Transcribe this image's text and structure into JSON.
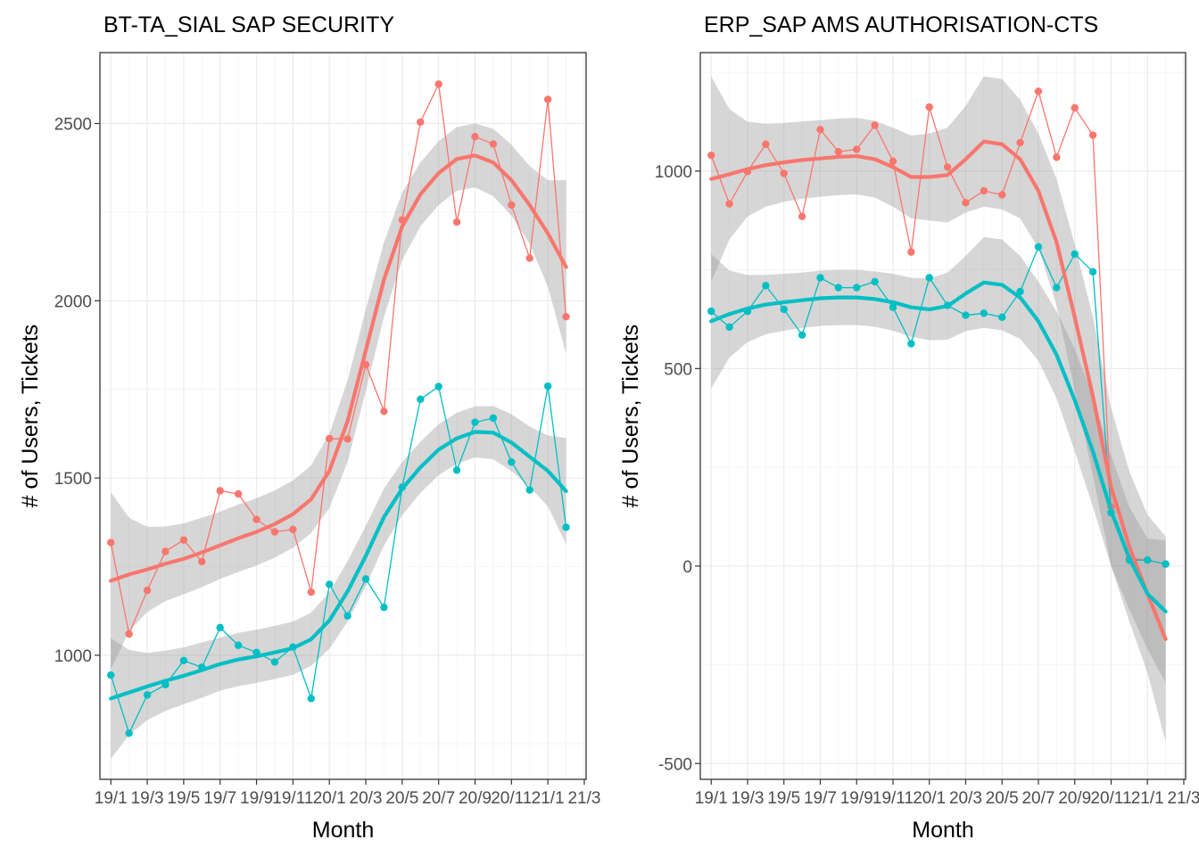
{
  "colors": {
    "users": "#F8766D",
    "tickets": "#00BFC4",
    "ribbon": "#999999",
    "grid_major": "#ebebeb",
    "grid_minor": "#f5f5f5",
    "panel_border": "#333333",
    "tick_text": "#4d4d4d"
  },
  "chart_data": [
    {
      "type": "line",
      "title": "BT-TA_SIAL SAP SECURITY",
      "xlabel": "Month",
      "ylabel": "# of Users, Tickets",
      "xlim": [
        -0.6,
        26.1
      ],
      "ylim": [
        650,
        2700
      ],
      "yticks": [
        1000,
        1500,
        2000,
        2500
      ],
      "yminor": [
        750,
        1250,
        1750,
        2250
      ],
      "xticks": [
        0,
        2,
        4,
        6,
        8,
        10,
        12,
        14,
        16,
        18,
        20,
        22,
        24,
        26
      ],
      "xtick_labels": [
        "19/1",
        "19/3",
        "19/5",
        "19/7",
        "19/9",
        "19/11",
        "20/1",
        "20/3",
        "20/5",
        "20/7",
        "20/9",
        "20/11",
        "21/1",
        "21/3"
      ],
      "grid": true,
      "legend": "none",
      "series": [
        {
          "color_key": "users",
          "x": [
            0,
            1,
            2,
            3,
            4,
            5,
            6,
            7,
            8,
            9,
            10,
            11,
            12,
            13,
            14,
            15,
            16,
            17,
            18,
            19,
            20,
            21,
            22,
            23,
            24,
            25
          ],
          "values": [
            1318,
            1060,
            1183,
            1293,
            1325,
            1264,
            1464,
            1455,
            1383,
            1348,
            1355,
            1178,
            1611,
            1610,
            1820,
            1688,
            2228,
            2504,
            2611,
            2222,
            2463,
            2442,
            2270,
            2120,
            2568,
            1955
          ],
          "smooth": [
            1210,
            1228,
            1242,
            1258,
            1272,
            1290,
            1310,
            1330,
            1348,
            1370,
            1398,
            1440,
            1520,
            1660,
            1860,
            2060,
            2210,
            2300,
            2360,
            2400,
            2410,
            2390,
            2340,
            2270,
            2190,
            2095
          ],
          "smooth_se": [
            250,
            160,
            120,
            105,
            100,
            98,
            95,
            95,
            95,
            95,
            95,
            95,
            105,
            115,
            115,
            105,
            95,
            90,
            90,
            90,
            90,
            95,
            100,
            110,
            150,
            245
          ]
        },
        {
          "color_key": "tickets",
          "x": [
            0,
            1,
            2,
            3,
            4,
            5,
            6,
            7,
            8,
            9,
            10,
            11,
            12,
            13,
            14,
            15,
            16,
            17,
            18,
            19,
            20,
            21,
            22,
            23,
            24,
            25
          ],
          "values": [
            944,
            780,
            888,
            917,
            985,
            966,
            1078,
            1028,
            1008,
            981,
            1023,
            878,
            1200,
            1111,
            1215,
            1135,
            1474,
            1722,
            1758,
            1522,
            1657,
            1669,
            1545,
            1466,
            1759,
            1361
          ],
          "smooth": [
            878,
            895,
            912,
            928,
            942,
            958,
            975,
            988,
            997,
            1008,
            1020,
            1045,
            1098,
            1180,
            1280,
            1390,
            1470,
            1530,
            1580,
            1612,
            1630,
            1628,
            1600,
            1560,
            1520,
            1463
          ],
          "smooth_se": [
            170,
            120,
            95,
            85,
            80,
            78,
            75,
            75,
            75,
            75,
            75,
            75,
            80,
            85,
            85,
            80,
            75,
            72,
            72,
            72,
            72,
            75,
            80,
            85,
            100,
            150
          ]
        }
      ]
    },
    {
      "type": "line",
      "title": "ERP_SAP AMS AUTHORISATION-CTS",
      "xlabel": "Month",
      "ylabel": "# of Users, Tickets",
      "xlim": [
        -0.6,
        26.1
      ],
      "ylim": [
        -540,
        1300
      ],
      "yticks": [
        -500,
        0,
        500,
        1000
      ],
      "yminor": [
        -250,
        250,
        750,
        1250
      ],
      "xticks": [
        0,
        2,
        4,
        6,
        8,
        10,
        12,
        14,
        16,
        18,
        20,
        22,
        24,
        26
      ],
      "xtick_labels": [
        "19/1",
        "19/3",
        "19/5",
        "19/7",
        "19/9",
        "19/11",
        "20/1",
        "20/3",
        "20/5",
        "20/7",
        "20/9",
        "20/11",
        "21/1",
        "21/3"
      ],
      "grid": true,
      "legend": "none",
      "series": [
        {
          "color_key": "users",
          "x": [
            0,
            1,
            2,
            3,
            4,
            5,
            6,
            7,
            8,
            9,
            10,
            11,
            12,
            13,
            14,
            15,
            16,
            17,
            18,
            19,
            20,
            21,
            22,
            23,
            24,
            25
          ],
          "values": [
            1040,
            917,
            999,
            1068,
            994,
            885,
            1105,
            1049,
            1055,
            1116,
            1025,
            795,
            1162,
            1010,
            920,
            950,
            940,
            1072,
            1202,
            1035,
            1160,
            1091,
            150,
            20,
            15,
            5
          ],
          "smooth": [
            980,
            992,
            1005,
            1015,
            1022,
            1028,
            1032,
            1036,
            1038,
            1030,
            1010,
            985,
            985,
            990,
            1030,
            1075,
            1068,
            1030,
            950,
            820,
            630,
            430,
            200,
            50,
            -70,
            -185
          ],
          "smooth_se": [
            260,
            165,
            120,
            105,
            100,
            98,
            97,
            97,
            97,
            97,
            100,
            105,
            110,
            120,
            135,
            165,
            165,
            150,
            145,
            160,
            185,
            200,
            200,
            190,
            200,
            260
          ]
        },
        {
          "color_key": "tickets",
          "x": [
            0,
            1,
            2,
            3,
            4,
            5,
            6,
            7,
            8,
            9,
            10,
            11,
            12,
            13,
            14,
            15,
            16,
            17,
            18,
            19,
            20,
            21,
            22,
            23,
            24,
            25
          ],
          "values": [
            645,
            605,
            645,
            710,
            650,
            585,
            730,
            705,
            705,
            720,
            655,
            563,
            730,
            660,
            635,
            640,
            630,
            695,
            808,
            705,
            790,
            745,
            135,
            15,
            15,
            5
          ],
          "smooth": [
            620,
            638,
            652,
            662,
            668,
            673,
            678,
            680,
            680,
            676,
            668,
            655,
            650,
            658,
            690,
            718,
            712,
            680,
            620,
            535,
            420,
            290,
            140,
            20,
            -70,
            -115
          ],
          "smooth_se": [
            170,
            110,
            85,
            75,
            72,
            70,
            70,
            70,
            70,
            70,
            72,
            75,
            78,
            85,
            95,
            115,
            115,
            105,
            100,
            110,
            130,
            140,
            140,
            130,
            140,
            180
          ]
        }
      ]
    }
  ]
}
